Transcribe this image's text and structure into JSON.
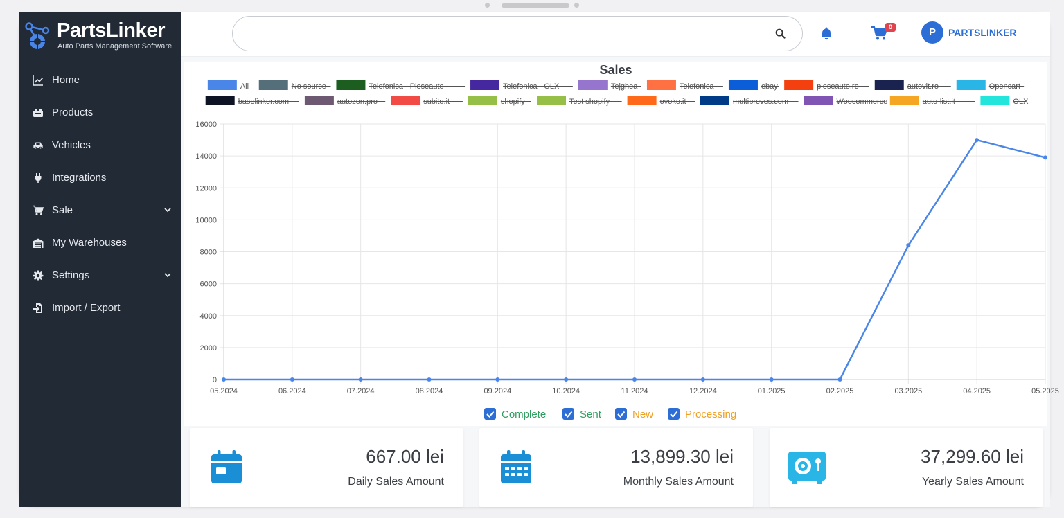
{
  "brand": {
    "name": "PartsLinker",
    "tagline": "Auto Parts Management Software"
  },
  "sidebar": {
    "items": [
      {
        "label": "Home",
        "icon": "chart-line-icon",
        "has_submenu": false
      },
      {
        "label": "Products",
        "icon": "box-icon",
        "has_submenu": false
      },
      {
        "label": "Vehicles",
        "icon": "car-icon",
        "has_submenu": false
      },
      {
        "label": "Integrations",
        "icon": "plug-icon",
        "has_submenu": false
      },
      {
        "label": "Sale",
        "icon": "cart-icon",
        "has_submenu": true
      },
      {
        "label": "My Warehouses",
        "icon": "warehouse-icon",
        "has_submenu": false
      },
      {
        "label": "Settings",
        "icon": "gear-icon",
        "has_submenu": true
      },
      {
        "label": "Import / Export",
        "icon": "file-import-icon",
        "has_submenu": false
      }
    ]
  },
  "header": {
    "search_value": "",
    "search_placeholder": "",
    "cart_count": "0",
    "avatar_initial": "P",
    "username": "PARTSLINKER"
  },
  "colors": {
    "sidebar_bg": "#222a35",
    "accent": "#2c6ed5",
    "line": "#4a86e8",
    "complete": "#2f9e5e",
    "new": "#f0a020",
    "badge": "#e0444e"
  },
  "chart_data": {
    "type": "line",
    "title": "Sales",
    "legend_position": "top",
    "legend": [
      {
        "name": "All",
        "color": "#4a86e8",
        "hidden": false
      },
      {
        "name": "No source",
        "color": "#546e7a",
        "hidden": true
      },
      {
        "name": "Telefonica - Pieseauto",
        "color": "#1b5e20",
        "hidden": true
      },
      {
        "name": "Telefonica - OLX",
        "color": "#4527a0",
        "hidden": true
      },
      {
        "name": "Tejghea",
        "color": "#9575cd",
        "hidden": true
      },
      {
        "name": "Telefonica",
        "color": "#ff7043",
        "hidden": true
      },
      {
        "name": "ebay",
        "color": "#0b5ed7",
        "hidden": true
      },
      {
        "name": "pieseauto.ro",
        "color": "#f43f0f",
        "hidden": true
      },
      {
        "name": "autovit.ro",
        "color": "#1a2350",
        "hidden": true
      },
      {
        "name": "Opencart",
        "color": "#29b6e6",
        "hidden": true
      },
      {
        "name": "baselinker.com",
        "color": "#0e1424",
        "hidden": true
      },
      {
        "name": "autozon.pro",
        "color": "#6d5a72",
        "hidden": true
      },
      {
        "name": "subito.it",
        "color": "#f24a45",
        "hidden": true
      },
      {
        "name": "shopify",
        "color": "#95bf47",
        "hidden": true
      },
      {
        "name": "Test shopify",
        "color": "#95bf47",
        "hidden": true
      },
      {
        "name": "ovoko.it",
        "color": "#ff6a1a",
        "hidden": true
      },
      {
        "name": "multibreves.com",
        "color": "#003b87",
        "hidden": true
      },
      {
        "name": "Woocommerce",
        "color": "#7f54b3",
        "hidden": true
      },
      {
        "name": "auto-list.it",
        "color": "#f5a623",
        "hidden": true
      },
      {
        "name": "OLX",
        "color": "#23e5db",
        "hidden": true
      }
    ],
    "x": [
      "05.2024",
      "06.2024",
      "07.2024",
      "08.2024",
      "09.2024",
      "10.2024",
      "11.2024",
      "12.2024",
      "01.2025",
      "02.2025",
      "03.2025",
      "04.2025",
      "05.2025"
    ],
    "series": [
      {
        "name": "All",
        "values": [
          0,
          0,
          0,
          0,
          0,
          0,
          0,
          0,
          0,
          0,
          8400,
          15000,
          13900
        ]
      }
    ],
    "y_ticks": [
      "0",
      "2000",
      "4000",
      "6000",
      "8000",
      "10000",
      "12000",
      "14000",
      "16000"
    ],
    "ylim": [
      0,
      16000
    ],
    "grid": true
  },
  "status_filters": [
    {
      "label": "Complete",
      "checked": true,
      "color": "#2f9e5e"
    },
    {
      "label": "Sent",
      "checked": true,
      "color": "#2f9e5e"
    },
    {
      "label": "New",
      "checked": true,
      "color": "#f0a020"
    },
    {
      "label": "Processing",
      "checked": true,
      "color": "#f0a020"
    }
  ],
  "stats": [
    {
      "value": "667.00 lei",
      "label": "Daily Sales Amount",
      "icon": "calendar-icon"
    },
    {
      "value": "13,899.30 lei",
      "label": "Monthly Sales Amount",
      "icon": "calendar-days-icon"
    },
    {
      "value": "37,299.60 lei",
      "label": "Yearly Sales Amount",
      "icon": "safe-icon"
    }
  ]
}
